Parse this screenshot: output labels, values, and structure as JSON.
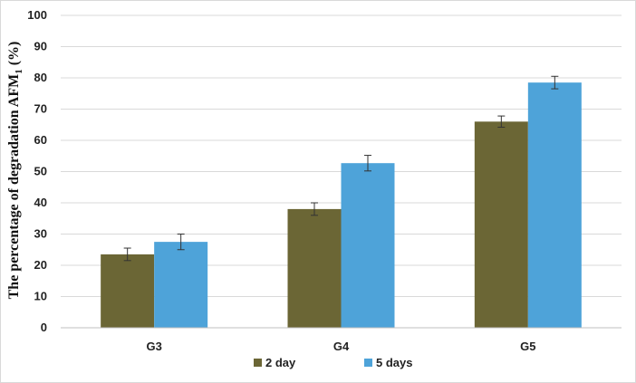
{
  "chart_data": {
    "type": "bar",
    "title": "",
    "xlabel": "",
    "ylabel": {
      "prefix": "The percentage of degradation AFM",
      "subscript": "1",
      "suffix": " (%)"
    },
    "ylim": [
      0,
      100
    ],
    "ytick_step": 10,
    "grid": true,
    "legend_position": "bottom",
    "categories": [
      "G3",
      "G4",
      "G5"
    ],
    "series": [
      {
        "name": "2 day",
        "color": "#6b6635",
        "values": [
          23.5,
          38,
          66
        ],
        "errors": [
          2.0,
          2.0,
          1.8
        ]
      },
      {
        "name": "5 days",
        "color": "#4ea3d9",
        "values": [
          27.5,
          52.7,
          78.5
        ],
        "errors": [
          2.5,
          2.5,
          2.0
        ]
      }
    ]
  }
}
